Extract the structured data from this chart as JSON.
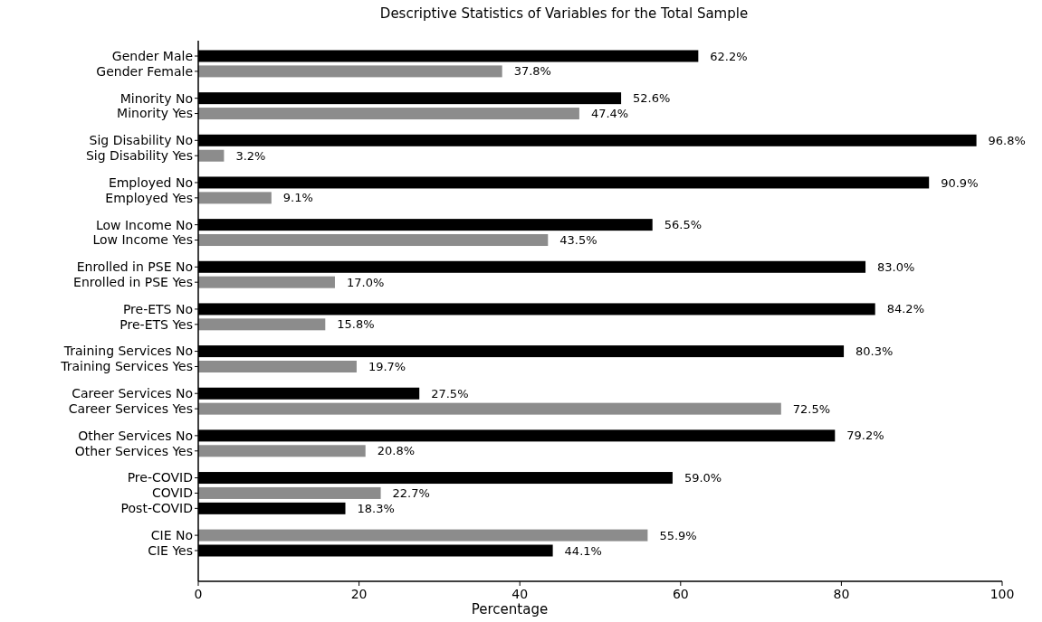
{
  "chart_data": {
    "type": "bar",
    "orientation": "horizontal",
    "title": "Descriptive Statistics of Variables for the Total Sample",
    "xlabel": "Percentage",
    "categories": [
      "Gender Male",
      "Gender Female",
      null,
      "Minority No",
      "Minority Yes",
      null,
      "Sig Disability No",
      "Sig Disability Yes",
      null,
      "Employed No",
      "Employed Yes",
      null,
      "Low Income No",
      "Low Income Yes",
      null,
      "Enrolled in PSE No",
      "Enrolled in PSE Yes",
      null,
      "Pre-ETS No",
      "Pre-ETS Yes",
      null,
      "Training Services No",
      "Training Services Yes",
      null,
      "Career Services No",
      "Career Services Yes",
      null,
      "Other Services No",
      "Other Services Yes",
      null,
      "Pre-COVID",
      "COVID",
      "Post-COVID",
      null,
      "CIE No",
      "CIE Yes"
    ],
    "values": [
      62.2,
      37.8,
      null,
      52.6,
      47.4,
      null,
      96.8,
      3.2,
      null,
      90.9,
      9.1,
      null,
      56.5,
      43.5,
      null,
      83.0,
      17.0,
      null,
      84.2,
      15.8,
      null,
      80.3,
      19.7,
      null,
      27.5,
      72.5,
      null,
      79.2,
      20.8,
      null,
      59.0,
      22.7,
      18.3,
      null,
      55.9,
      44.1
    ],
    "colors": [
      "#000000",
      "#8c8c8c",
      null,
      "#000000",
      "#8c8c8c",
      null,
      "#000000",
      "#8c8c8c",
      null,
      "#000000",
      "#8c8c8c",
      null,
      "#000000",
      "#8c8c8c",
      null,
      "#000000",
      "#8c8c8c",
      null,
      "#000000",
      "#8c8c8c",
      null,
      "#000000",
      "#8c8c8c",
      null,
      "#000000",
      "#8c8c8c",
      null,
      "#000000",
      "#8c8c8c",
      null,
      "#000000",
      "#8c8c8c",
      "#000000",
      null,
      "#8c8c8c",
      "#000000"
    ],
    "value_labels": [
      "62.2%",
      "37.8%",
      null,
      "52.6%",
      "47.4%",
      null,
      "96.8%",
      "3.2%",
      null,
      "90.9%",
      "9.1%",
      null,
      "56.5%",
      "43.5%",
      null,
      "83.0%",
      "17.0%",
      null,
      "84.2%",
      "15.8%",
      null,
      "80.3%",
      "19.7%",
      null,
      "27.5%",
      "72.5%",
      null,
      "79.2%",
      "20.8%",
      null,
      "59.0%",
      "22.7%",
      "18.3%",
      null,
      "55.9%",
      "44.1%"
    ],
    "xlim": [
      0,
      100
    ],
    "xticks": [
      0,
      20,
      40,
      60,
      80,
      100
    ],
    "grid": false
  }
}
